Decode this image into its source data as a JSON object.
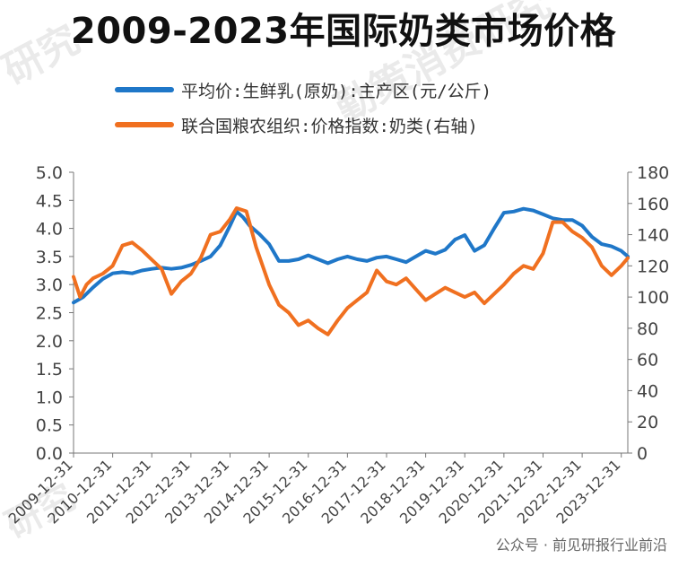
{
  "page_title": "2009-2023年国际奶类市场价格",
  "legend": {
    "series1": "平均价:生鲜乳(原奶):主产区(元/公斤)",
    "series2": "联合国粮农组织:价格指数:奶类(右轴)"
  },
  "watermarks": [
    "勤策消费研究",
    "研究",
    "研究"
  ],
  "source_note": "公众号 · 前见研报行业前沿",
  "colors": {
    "series1": "#1f77c8",
    "series2": "#f07020",
    "axis": "#777777",
    "tick_text": "#444444"
  },
  "chart_data": {
    "type": "line",
    "title": "2009-2023年国际奶类市场价格",
    "x_categories": [
      "2009-12-31",
      "2010-12-31",
      "2011-12-31",
      "2012-12-31",
      "2013-12-31",
      "2014-12-31",
      "2015-12-31",
      "2016-12-31",
      "2017-12-31",
      "2018-12-31",
      "2019-12-31",
      "2020-12-31",
      "2021-12-31",
      "2022-12-31",
      "2023-12-31"
    ],
    "y_left": {
      "ylim": [
        0,
        5
      ],
      "ticks": [
        "0.0",
        "0.5",
        "1.0",
        "1.5",
        "2.0",
        "2.5",
        "3.0",
        "3.5",
        "4.0",
        "4.5",
        "5.0"
      ]
    },
    "y_right": {
      "ylim": [
        0,
        180
      ],
      "ticks": [
        "0",
        "20",
        "40",
        "60",
        "80",
        "100",
        "120",
        "140",
        "160",
        "180"
      ]
    },
    "grid": false,
    "legend_position": "top",
    "series": [
      {
        "name": "平均价:生鲜乳(原奶):主产区(元/公斤)",
        "axis": "left",
        "points": [
          [
            "2009-12",
            2.68
          ],
          [
            "2010-03",
            2.78
          ],
          [
            "2010-06",
            2.95
          ],
          [
            "2010-09",
            3.1
          ],
          [
            "2010-12",
            3.2
          ],
          [
            "2011-03",
            3.22
          ],
          [
            "2011-06",
            3.2
          ],
          [
            "2011-09",
            3.25
          ],
          [
            "2011-12",
            3.28
          ],
          [
            "2012-03",
            3.3
          ],
          [
            "2012-06",
            3.28
          ],
          [
            "2012-09",
            3.3
          ],
          [
            "2012-12",
            3.35
          ],
          [
            "2013-03",
            3.42
          ],
          [
            "2013-06",
            3.5
          ],
          [
            "2013-09",
            3.7
          ],
          [
            "2013-12",
            4.05
          ],
          [
            "2014-02",
            4.3
          ],
          [
            "2014-04",
            4.2
          ],
          [
            "2014-06",
            4.05
          ],
          [
            "2014-09",
            3.9
          ],
          [
            "2014-12",
            3.72
          ],
          [
            "2015-03",
            3.42
          ],
          [
            "2015-06",
            3.42
          ],
          [
            "2015-09",
            3.45
          ],
          [
            "2015-12",
            3.52
          ],
          [
            "2016-03",
            3.45
          ],
          [
            "2016-06",
            3.38
          ],
          [
            "2016-09",
            3.45
          ],
          [
            "2016-12",
            3.5
          ],
          [
            "2017-03",
            3.45
          ],
          [
            "2017-06",
            3.42
          ],
          [
            "2017-09",
            3.48
          ],
          [
            "2017-12",
            3.5
          ],
          [
            "2018-03",
            3.45
          ],
          [
            "2018-06",
            3.4
          ],
          [
            "2018-09",
            3.5
          ],
          [
            "2018-12",
            3.6
          ],
          [
            "2019-03",
            3.55
          ],
          [
            "2019-06",
            3.62
          ],
          [
            "2019-09",
            3.8
          ],
          [
            "2019-12",
            3.88
          ],
          [
            "2020-03",
            3.6
          ],
          [
            "2020-06",
            3.7
          ],
          [
            "2020-09",
            4.0
          ],
          [
            "2020-12",
            4.28
          ],
          [
            "2021-03",
            4.3
          ],
          [
            "2021-06",
            4.35
          ],
          [
            "2021-09",
            4.32
          ],
          [
            "2021-12",
            4.25
          ],
          [
            "2022-03",
            4.18
          ],
          [
            "2022-06",
            4.15
          ],
          [
            "2022-09",
            4.15
          ],
          [
            "2022-12",
            4.05
          ],
          [
            "2023-03",
            3.85
          ],
          [
            "2023-06",
            3.72
          ],
          [
            "2023-09",
            3.68
          ],
          [
            "2023-12",
            3.6
          ],
          [
            "2024-02",
            3.5
          ]
        ]
      },
      {
        "name": "联合国粮农组织:价格指数:奶类(右轴)",
        "axis": "right",
        "points": [
          [
            "2009-12",
            113
          ],
          [
            "2010-02",
            100
          ],
          [
            "2010-04",
            108
          ],
          [
            "2010-06",
            112
          ],
          [
            "2010-09",
            115
          ],
          [
            "2010-12",
            120
          ],
          [
            "2011-03",
            133
          ],
          [
            "2011-06",
            135
          ],
          [
            "2011-09",
            130
          ],
          [
            "2011-12",
            124
          ],
          [
            "2012-03",
            118
          ],
          [
            "2012-06",
            102
          ],
          [
            "2012-09",
            110
          ],
          [
            "2012-12",
            115
          ],
          [
            "2013-03",
            125
          ],
          [
            "2013-06",
            140
          ],
          [
            "2013-09",
            142
          ],
          [
            "2013-12",
            150
          ],
          [
            "2014-02",
            157
          ],
          [
            "2014-05",
            155
          ],
          [
            "2014-08",
            132
          ],
          [
            "2014-12",
            108
          ],
          [
            "2015-03",
            95
          ],
          [
            "2015-06",
            90
          ],
          [
            "2015-09",
            82
          ],
          [
            "2015-12",
            85
          ],
          [
            "2016-03",
            80
          ],
          [
            "2016-06",
            76
          ],
          [
            "2016-09",
            85
          ],
          [
            "2016-12",
            93
          ],
          [
            "2017-03",
            98
          ],
          [
            "2017-06",
            103
          ],
          [
            "2017-09",
            117
          ],
          [
            "2017-12",
            110
          ],
          [
            "2018-03",
            108
          ],
          [
            "2018-06",
            112
          ],
          [
            "2018-09",
            105
          ],
          [
            "2018-12",
            98
          ],
          [
            "2019-03",
            102
          ],
          [
            "2019-06",
            106
          ],
          [
            "2019-09",
            103
          ],
          [
            "2019-12",
            100
          ],
          [
            "2020-03",
            103
          ],
          [
            "2020-06",
            96
          ],
          [
            "2020-09",
            102
          ],
          [
            "2020-12",
            108
          ],
          [
            "2021-03",
            115
          ],
          [
            "2021-06",
            120
          ],
          [
            "2021-09",
            118
          ],
          [
            "2021-12",
            128
          ],
          [
            "2022-03",
            148
          ],
          [
            "2022-06",
            148
          ],
          [
            "2022-09",
            142
          ],
          [
            "2022-12",
            138
          ],
          [
            "2023-03",
            132
          ],
          [
            "2023-06",
            120
          ],
          [
            "2023-09",
            114
          ],
          [
            "2023-12",
            120
          ],
          [
            "2024-02",
            125
          ]
        ]
      }
    ]
  }
}
